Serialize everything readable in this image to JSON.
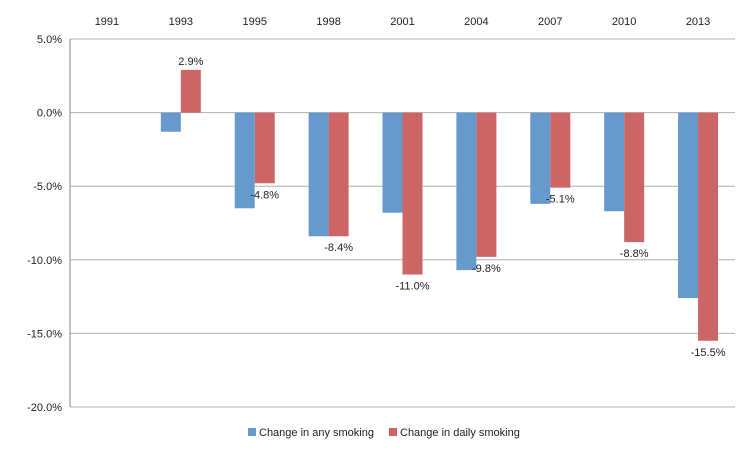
{
  "chart_data": {
    "type": "bar",
    "categories": [
      "1991",
      "1993",
      "1995",
      "1998",
      "2001",
      "2004",
      "2007",
      "2010",
      "2013"
    ],
    "series": [
      {
        "name": "Change in any smoking",
        "color": "#6699cc",
        "values": [
          null,
          -1.3,
          -6.5,
          -8.4,
          -6.8,
          -10.7,
          -6.2,
          -6.7,
          -12.6
        ]
      },
      {
        "name": "Change in daily smoking",
        "color": "#cc6666",
        "values": [
          null,
          2.9,
          -4.8,
          -8.4,
          -11.0,
          -9.8,
          -5.1,
          -8.8,
          -15.5
        ],
        "data_labels": [
          "",
          "2.9%",
          "-4.8%",
          "-8.4%",
          "-11.0%",
          "-9.8%",
          "-5.1%",
          "-8.8%",
          "-15.5%"
        ]
      }
    ],
    "y_ticks": [
      5,
      0,
      -5,
      -10,
      -15,
      -20
    ],
    "y_tick_labels": [
      "5.0%",
      "0.0%",
      "-5.0%",
      "-10.0%",
      "-15.0%",
      "-20.0%"
    ],
    "ylim": [
      -20,
      5
    ],
    "grid": true,
    "category_labels_position": "top",
    "legend_position": "bottom"
  }
}
